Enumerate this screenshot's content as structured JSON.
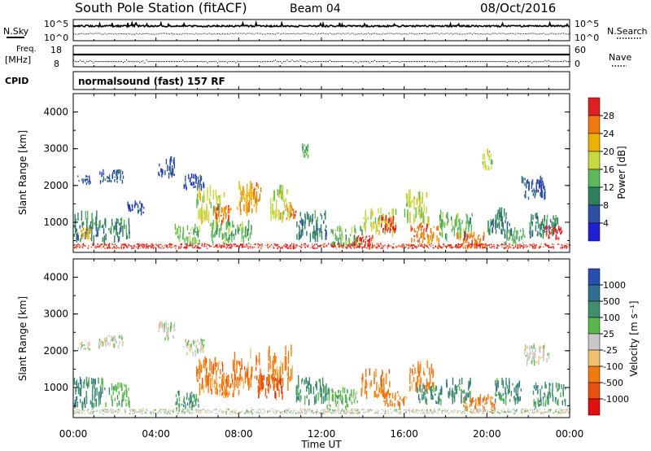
{
  "header": {
    "title": "South Pole Station (fitACF)",
    "beam": "Beam 04",
    "date": "08/Oct/2016"
  },
  "top_panels": {
    "nsky_label": "N.Sky",
    "nsearch_label": "N.Search",
    "noise_ticks": [
      "10^5",
      "10^0"
    ],
    "freq_label_1": "Freq.",
    "freq_label_2": "[MHz]",
    "freq_ticks": [
      "18",
      "8"
    ],
    "nave_label": "Nave",
    "nave_ticks": [
      "60",
      "0"
    ],
    "cpid_label": "CPID",
    "cpid_text": "normalsound (fast) 157 RF"
  },
  "chart_data": [
    {
      "type": "heatmap",
      "name": "power",
      "ylabel": "Slant Range [km]",
      "xlabel": "",
      "xlim": [
        0,
        24
      ],
      "ylim": [
        180,
        4500
      ],
      "yticks": [
        "1000",
        "2000",
        "3000",
        "4000"
      ],
      "x_ticks": [
        "00:00",
        "04:00",
        "08:00",
        "12:00",
        "16:00",
        "20:00",
        "00:00"
      ],
      "colorbar_label": "Power [dB]",
      "colorbar_ticks": [
        "4",
        "8",
        "12",
        "16",
        "20",
        "24",
        "28"
      ],
      "colors": [
        "#1f1fd6",
        "#2d4fa6",
        "#2f7f5f",
        "#5bb85b",
        "#c8d840",
        "#f0b000",
        "#f07a10",
        "#e02020"
      ],
      "clusters": [
        {
          "t": 0.5,
          "r": 2150,
          "w": 0.6,
          "h": 150,
          "c": 1
        },
        {
          "t": 1.8,
          "r": 2250,
          "w": 1.2,
          "h": 200,
          "c": 1
        },
        {
          "t": 4.5,
          "r": 2500,
          "w": 0.8,
          "h": 300,
          "c": 1
        },
        {
          "t": 5.8,
          "r": 2100,
          "w": 1.0,
          "h": 250,
          "c": 1
        },
        {
          "t": 3.0,
          "r": 1400,
          "w": 0.8,
          "h": 200,
          "c": 1
        },
        {
          "t": 0.8,
          "r": 850,
          "w": 1.6,
          "h": 450,
          "c": 2
        },
        {
          "t": 0.6,
          "r": 700,
          "w": 0.5,
          "h": 200,
          "c": 5
        },
        {
          "t": 2.2,
          "r": 800,
          "w": 1.0,
          "h": 350,
          "c": 2
        },
        {
          "t": 5.5,
          "r": 650,
          "w": 1.2,
          "h": 300,
          "c": 3
        },
        {
          "t": 6.6,
          "r": 1450,
          "w": 1.4,
          "h": 550,
          "c": 4
        },
        {
          "t": 7.2,
          "r": 1200,
          "w": 0.8,
          "h": 300,
          "c": 6
        },
        {
          "t": 8.4,
          "r": 1650,
          "w": 1.0,
          "h": 500,
          "c": 5
        },
        {
          "t": 8.8,
          "r": 1800,
          "w": 0.5,
          "h": 300,
          "c": 6
        },
        {
          "t": 10.0,
          "r": 1500,
          "w": 1.0,
          "h": 500,
          "c": 4
        },
        {
          "t": 10.5,
          "r": 1300,
          "w": 0.5,
          "h": 250,
          "c": 6
        },
        {
          "t": 7.6,
          "r": 700,
          "w": 2.0,
          "h": 350,
          "c": 3
        },
        {
          "t": 11.2,
          "r": 2950,
          "w": 0.3,
          "h": 200,
          "c": 3
        },
        {
          "t": 11.5,
          "r": 900,
          "w": 1.5,
          "h": 400,
          "c": 2
        },
        {
          "t": 13.2,
          "r": 600,
          "w": 1.5,
          "h": 300,
          "c": 3
        },
        {
          "t": 14.0,
          "r": 480,
          "w": 1.0,
          "h": 200,
          "c": 7
        },
        {
          "t": 14.8,
          "r": 1000,
          "w": 1.6,
          "h": 400,
          "c": 4
        },
        {
          "t": 15.2,
          "r": 950,
          "w": 0.8,
          "h": 250,
          "c": 7
        },
        {
          "t": 16.6,
          "r": 1400,
          "w": 1.2,
          "h": 500,
          "c": 4
        },
        {
          "t": 17.0,
          "r": 700,
          "w": 1.4,
          "h": 300,
          "c": 6
        },
        {
          "t": 18.5,
          "r": 900,
          "w": 1.6,
          "h": 400,
          "c": 3
        },
        {
          "t": 19.2,
          "r": 500,
          "w": 1.4,
          "h": 250,
          "c": 6
        },
        {
          "t": 20.6,
          "r": 1000,
          "w": 1.2,
          "h": 400,
          "c": 2
        },
        {
          "t": 21.3,
          "r": 600,
          "w": 1.0,
          "h": 250,
          "c": 3
        },
        {
          "t": 22.7,
          "r": 900,
          "w": 1.4,
          "h": 350,
          "c": 2
        },
        {
          "t": 23.2,
          "r": 700,
          "w": 0.8,
          "h": 200,
          "c": 7
        },
        {
          "t": 22.2,
          "r": 1900,
          "w": 1.2,
          "h": 350,
          "c": 1
        },
        {
          "t": 20.0,
          "r": 2700,
          "w": 0.5,
          "h": 300,
          "c": 4
        },
        {
          "t": 12.0,
          "r": 350,
          "w": 24.0,
          "h": 80,
          "c": 7
        }
      ]
    },
    {
      "type": "heatmap",
      "name": "velocity",
      "ylabel": "Slant Range [km]",
      "xlabel": "Time UT",
      "xlim": [
        0,
        24
      ],
      "ylim": [
        180,
        4500
      ],
      "yticks": [
        "1000",
        "2000",
        "3000",
        "4000"
      ],
      "x_ticks": [
        "00:00",
        "04:00",
        "08:00",
        "12:00",
        "16:00",
        "20:00",
        "00:00"
      ],
      "colorbar_label": "Velocity [m s⁻¹]",
      "colorbar_ticks": [
        "1000",
        "500",
        "100",
        "25",
        "-25",
        "-100",
        "-500",
        "-1000"
      ],
      "colors": [
        "#2a4fb0",
        "#2f6f8f",
        "#3f8f6f",
        "#5ab84a",
        "#c8c8c8",
        "#f0c070",
        "#f07a10",
        "#e85010",
        "#e01010"
      ],
      "clusters": [
        {
          "t": 0.5,
          "r": 2150,
          "w": 0.6,
          "h": 150,
          "c": 4
        },
        {
          "t": 1.8,
          "r": 2250,
          "w": 1.2,
          "h": 200,
          "c": 4
        },
        {
          "t": 4.5,
          "r": 2500,
          "w": 0.8,
          "h": 300,
          "c": 4
        },
        {
          "t": 5.8,
          "r": 2100,
          "w": 1.0,
          "h": 250,
          "c": 4
        },
        {
          "t": 0.8,
          "r": 850,
          "w": 1.6,
          "h": 450,
          "c": 2
        },
        {
          "t": 2.2,
          "r": 800,
          "w": 1.0,
          "h": 350,
          "c": 3
        },
        {
          "t": 5.5,
          "r": 650,
          "w": 1.2,
          "h": 300,
          "c": 2
        },
        {
          "t": 6.6,
          "r": 1300,
          "w": 1.4,
          "h": 550,
          "c": 6
        },
        {
          "t": 7.4,
          "r": 1050,
          "w": 1.2,
          "h": 350,
          "c": 6
        },
        {
          "t": 8.4,
          "r": 1500,
          "w": 1.4,
          "h": 550,
          "c": 6
        },
        {
          "t": 10.0,
          "r": 1550,
          "w": 1.2,
          "h": 600,
          "c": 6
        },
        {
          "t": 9.5,
          "r": 1000,
          "w": 1.2,
          "h": 350,
          "c": 7
        },
        {
          "t": 11.5,
          "r": 900,
          "w": 1.5,
          "h": 400,
          "c": 2
        },
        {
          "t": 13.0,
          "r": 700,
          "w": 1.5,
          "h": 300,
          "c": 3
        },
        {
          "t": 14.6,
          "r": 1100,
          "w": 1.4,
          "h": 450,
          "c": 6
        },
        {
          "t": 15.5,
          "r": 700,
          "w": 1.2,
          "h": 250,
          "c": 6
        },
        {
          "t": 16.8,
          "r": 1300,
          "w": 1.2,
          "h": 450,
          "c": 6
        },
        {
          "t": 17.2,
          "r": 800,
          "w": 1.2,
          "h": 300,
          "c": 2
        },
        {
          "t": 18.6,
          "r": 900,
          "w": 1.2,
          "h": 350,
          "c": 2
        },
        {
          "t": 19.6,
          "r": 550,
          "w": 1.6,
          "h": 250,
          "c": 6
        },
        {
          "t": 21.0,
          "r": 900,
          "w": 1.4,
          "h": 350,
          "c": 2
        },
        {
          "t": 23.0,
          "r": 800,
          "w": 1.6,
          "h": 350,
          "c": 2
        },
        {
          "t": 22.4,
          "r": 1900,
          "w": 1.2,
          "h": 300,
          "c": 4
        },
        {
          "t": 12.0,
          "r": 350,
          "w": 24.0,
          "h": 80,
          "c": 4
        }
      ]
    }
  ]
}
